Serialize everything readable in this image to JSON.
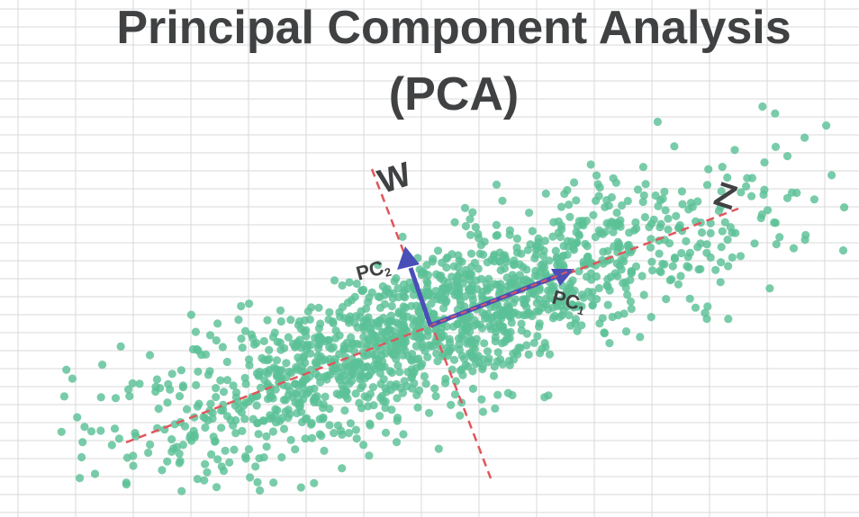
{
  "title": {
    "line1": "Principal Component Analysis",
    "line2": "(PCA)"
  },
  "axes": {
    "major_axis_label": "Z",
    "minor_axis_label": "W"
  },
  "components": {
    "pc1": {
      "base": "PC",
      "subscript": "1"
    },
    "pc2": {
      "base": "PC",
      "subscript": "2"
    }
  },
  "colors": {
    "points": "#5cc196",
    "axis_lines": "#e0565b",
    "vectors": "#4a4fb8",
    "grid": "#d9d9d9",
    "text": "#3f4142"
  }
}
